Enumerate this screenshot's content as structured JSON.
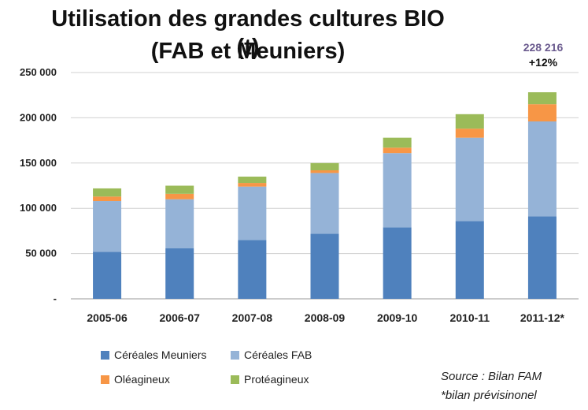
{
  "title_line1": "Utilisation des grandes cultures BIO (t)",
  "title_line2": "(FAB et Meuniers)",
  "callout": {
    "value": "228 216",
    "pct": "+12%"
  },
  "source": {
    "line1": "Source : Bilan FAM",
    "line2": "*bilan prévisinonel"
  },
  "chart_data": {
    "type": "bar",
    "stacked": true,
    "categories": [
      "2005-06",
      "2006-07",
      "2007-08",
      "2008-09",
      "2009-10",
      "2010-11",
      "2011-12*"
    ],
    "series": [
      {
        "name": "Céréales Meuniers",
        "color": "#4f81bd",
        "values": [
          52000,
          56000,
          65000,
          72000,
          79000,
          86000,
          91000
        ]
      },
      {
        "name": "Céréales FAB",
        "color": "#95b3d7",
        "values": [
          56000,
          54000,
          59000,
          67000,
          82000,
          92000,
          105000
        ]
      },
      {
        "name": "Oléagineux",
        "color": "#f79646",
        "values": [
          5000,
          6000,
          4000,
          3000,
          6000,
          10000,
          19000
        ]
      },
      {
        "name": "Protéagineux",
        "color": "#9bbb59",
        "values": [
          9000,
          9000,
          7000,
          8000,
          11000,
          16000,
          13216
        ]
      }
    ],
    "ylim": [
      0,
      250000
    ],
    "yticks": [
      0,
      50000,
      100000,
      150000,
      200000,
      250000
    ],
    "ytick_labels": [
      "-",
      "50 000",
      "100 000",
      "150 000",
      "200 000",
      "250 000"
    ],
    "grid": true,
    "legend_position": "bottom-left"
  }
}
